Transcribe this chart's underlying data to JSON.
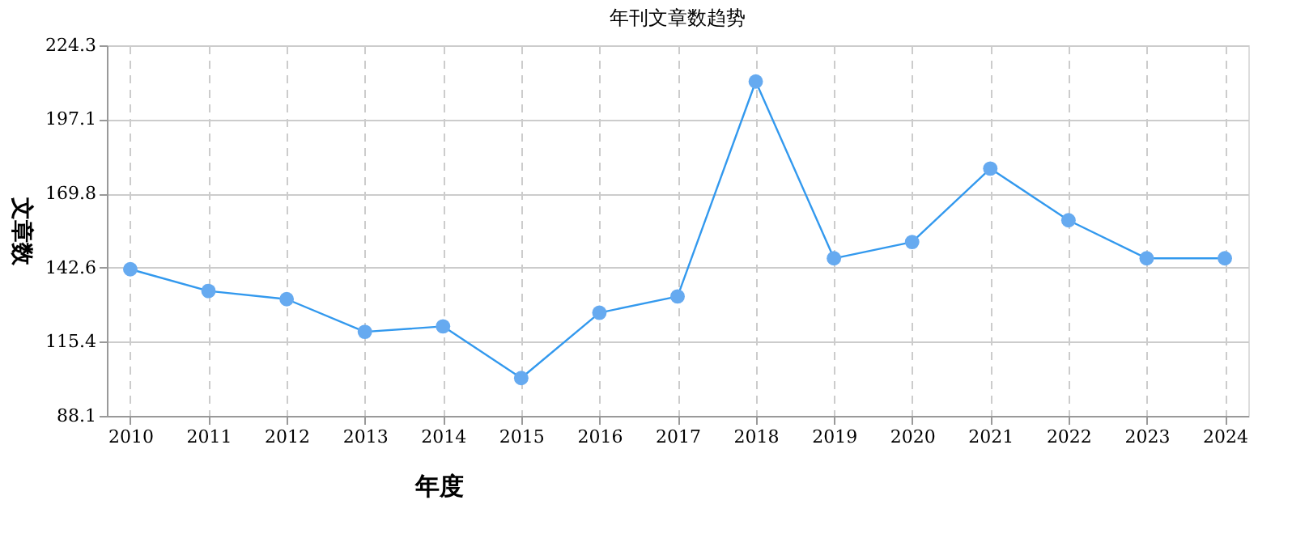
{
  "chart_data": {
    "type": "line",
    "title": "年刊文章数趋势",
    "xlabel": "年度",
    "ylabel": "文章数",
    "categories": [
      "2010",
      "2011",
      "2012",
      "2013",
      "2014",
      "2015",
      "2016",
      "2017",
      "2018",
      "2019",
      "2020",
      "2021",
      "2022",
      "2023",
      "2024"
    ],
    "series": [
      {
        "color": "#3399ee",
        "values": [
          142,
          134,
          131,
          119,
          121,
          102,
          126,
          132,
          211,
          146,
          152,
          179,
          160,
          146,
          146
        ]
      }
    ],
    "ylim": [
      88.1,
      224.3
    ],
    "yticks": [
      88.1,
      115.4,
      142.6,
      169.8,
      197.1,
      224.3
    ],
    "grid": true,
    "marker": "circle",
    "line_style": "solid"
  }
}
